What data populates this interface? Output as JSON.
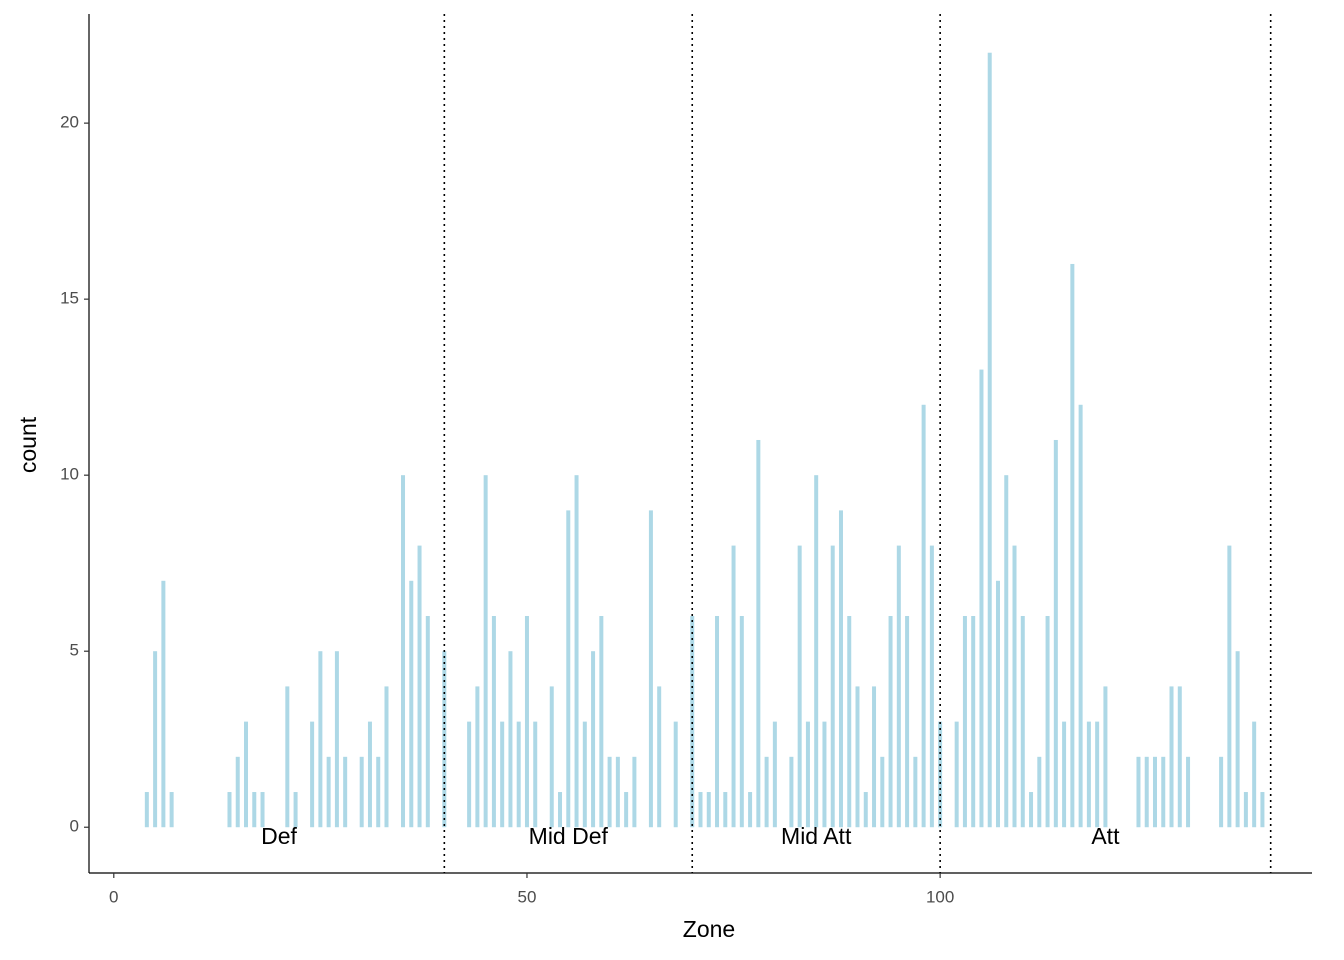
{
  "chart_data": {
    "type": "bar",
    "x_label": "Zone",
    "y_label": "count",
    "x": [
      4,
      5,
      6,
      7,
      14,
      15,
      16,
      17,
      18,
      21,
      22,
      24,
      25,
      26,
      27,
      28,
      30,
      31,
      32,
      33,
      35,
      36,
      37,
      38,
      40,
      43,
      44,
      45,
      46,
      47,
      48,
      49,
      50,
      51,
      53,
      54,
      55,
      56,
      57,
      58,
      59,
      60,
      61,
      62,
      63,
      65,
      66,
      68,
      70,
      71,
      72,
      73,
      74,
      75,
      76,
      77,
      78,
      79,
      80,
      82,
      83,
      84,
      85,
      86,
      87,
      88,
      89,
      90,
      91,
      92,
      93,
      94,
      95,
      96,
      97,
      98,
      99,
      100,
      102,
      103,
      104,
      105,
      106,
      107,
      108,
      109,
      110,
      111,
      112,
      113,
      114,
      115,
      116,
      117,
      118,
      119,
      120,
      124,
      125,
      126,
      127,
      128,
      129,
      130,
      134,
      135,
      136,
      137,
      138,
      139
    ],
    "values": [
      1,
      5,
      7,
      1,
      1,
      2,
      3,
      1,
      1,
      4,
      1,
      3,
      5,
      2,
      5,
      2,
      2,
      3,
      2,
      4,
      10,
      7,
      8,
      6,
      5,
      3,
      4,
      10,
      6,
      3,
      5,
      3,
      6,
      3,
      4,
      1,
      9,
      10,
      3,
      5,
      6,
      2,
      2,
      1,
      2,
      9,
      4,
      3,
      6,
      1,
      1,
      6,
      1,
      8,
      6,
      1,
      11,
      2,
      3,
      2,
      8,
      3,
      10,
      3,
      8,
      9,
      6,
      4,
      1,
      4,
      2,
      6,
      8,
      6,
      2,
      12,
      8,
      3,
      3,
      6,
      6,
      13,
      22,
      7,
      10,
      8,
      6,
      1,
      2,
      6,
      11,
      3,
      16,
      12,
      3,
      3,
      4,
      2,
      2,
      2,
      2,
      4,
      4,
      2,
      2,
      8,
      5,
      1,
      3,
      1
    ],
    "color": "#add8e6",
    "vlines": [
      40,
      70,
      100,
      140
    ],
    "annotations": [
      {
        "label": "Def",
        "x": 20,
        "y": -0.3
      },
      {
        "label": "Mid Def",
        "x": 55,
        "y": -0.3
      },
      {
        "label": "Mid Att",
        "x": 85,
        "y": -0.3
      },
      {
        "label": "Att",
        "x": 120,
        "y": -0.3
      }
    ],
    "xlim": [
      -3,
      145
    ],
    "ylim": [
      -1.3,
      23.1
    ],
    "xticks": [
      0,
      50,
      100
    ],
    "yticks": [
      0,
      5,
      10,
      15,
      20
    ]
  }
}
